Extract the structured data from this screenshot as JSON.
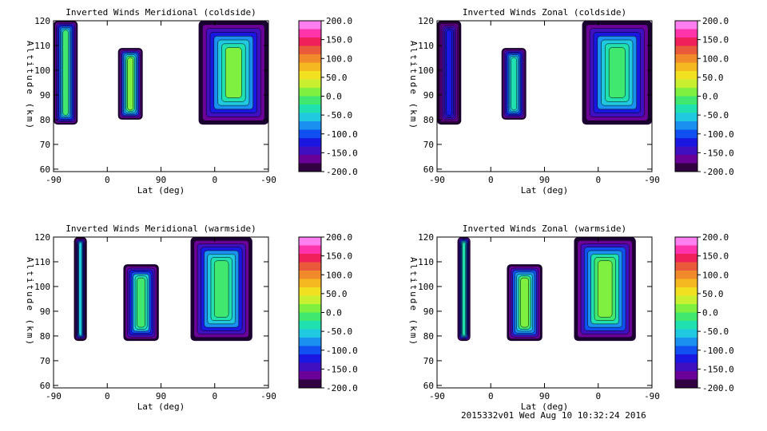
{
  "footer": "2015332v01 Wed Aug 10 10:32:24 2016",
  "colorbar": {
    "ticks": [
      "200.0",
      "150.0",
      "100.0",
      "50.0",
      "0.0",
      "-50.0",
      "-100.0",
      "-150.0",
      "-200.0"
    ],
    "colors": [
      "#ff7ff0",
      "#ff33aa",
      "#f0205a",
      "#e85a3a",
      "#f08a2a",
      "#f5b820",
      "#f0e020",
      "#c8f030",
      "#80f040",
      "#40e870",
      "#20e0b0",
      "#20c8e0",
      "#1a90f0",
      "#1050f0",
      "#1a18e0",
      "#4010c0",
      "#6a0098",
      "#300040"
    ]
  },
  "chart_data": [
    {
      "type": "heatmap",
      "title": "Inverted Winds Meridional (coldside)",
      "xlabel": "Lat (deg)",
      "ylabel": "Altitude (km)",
      "x_ticks": [
        "-90",
        "0",
        "90",
        "0",
        "-90"
      ],
      "y_ticks": [
        "60",
        "70",
        "80",
        "90",
        "100",
        "110",
        "120"
      ],
      "xlim": [
        0,
        4
      ],
      "ylim": [
        59,
        120
      ],
      "z_range": [
        -200,
        200
      ],
      "blocks": [
        {
          "x": [
            0.0,
            0.45
          ],
          "y": [
            78,
            120
          ],
          "value": -20
        },
        {
          "x": [
            1.2,
            1.66
          ],
          "y": [
            80,
            109
          ],
          "value": 10
        },
        {
          "x": [
            2.7,
            4.0
          ],
          "y": [
            78,
            120
          ],
          "value": 5
        }
      ]
    },
    {
      "type": "heatmap",
      "title": "Inverted Winds Zonal (coldside)",
      "xlabel": "Lat (deg)",
      "ylabel": "Altitude (km)",
      "x_ticks": [
        "-90",
        "0",
        "90",
        "0",
        "-90"
      ],
      "y_ticks": [
        "60",
        "70",
        "80",
        "90",
        "100",
        "110",
        "120"
      ],
      "xlim": [
        0,
        4
      ],
      "ylim": [
        59,
        120
      ],
      "z_range": [
        -200,
        200
      ],
      "blocks": [
        {
          "x": [
            0.0,
            0.45
          ],
          "y": [
            78,
            120
          ],
          "value": -120
        },
        {
          "x": [
            1.2,
            1.66
          ],
          "y": [
            80,
            109
          ],
          "value": -30
        },
        {
          "x": [
            2.7,
            4.0
          ],
          "y": [
            78,
            120
          ],
          "value": 0
        }
      ]
    },
    {
      "type": "heatmap",
      "title": "Inverted Winds Meridional (warmside)",
      "xlabel": "Lat (deg)",
      "ylabel": "Altitude (km)",
      "x_ticks": [
        "-90",
        "0",
        "90",
        "0",
        "-90"
      ],
      "y_ticks": [
        "60",
        "70",
        "80",
        "90",
        "100",
        "110",
        "120"
      ],
      "xlim": [
        0,
        4
      ],
      "ylim": [
        59,
        120
      ],
      "z_range": [
        -200,
        200
      ],
      "blocks": [
        {
          "x": [
            0.38,
            0.62
          ],
          "y": [
            78,
            120
          ],
          "value": -60
        },
        {
          "x": [
            1.3,
            1.96
          ],
          "y": [
            78,
            109
          ],
          "value": -10
        },
        {
          "x": [
            2.55,
            3.7
          ],
          "y": [
            78,
            120
          ],
          "value": -5
        }
      ]
    },
    {
      "type": "heatmap",
      "title": "Inverted Winds Zonal (warmside)",
      "xlabel": "Lat (deg)",
      "ylabel": "Altitude (km)",
      "x_ticks": [
        "-90",
        "0",
        "90",
        "0",
        "-90"
      ],
      "y_ticks": [
        "60",
        "70",
        "80",
        "90",
        "100",
        "110",
        "120"
      ],
      "xlim": [
        0,
        4
      ],
      "ylim": [
        59,
        120
      ],
      "z_range": [
        -200,
        200
      ],
      "blocks": [
        {
          "x": [
            0.38,
            0.62
          ],
          "y": [
            78,
            120
          ],
          "value": -40
        },
        {
          "x": [
            1.3,
            1.96
          ],
          "y": [
            78,
            109
          ],
          "value": 15
        },
        {
          "x": [
            2.55,
            3.7
          ],
          "y": [
            78,
            120
          ],
          "value": 20
        }
      ]
    }
  ]
}
